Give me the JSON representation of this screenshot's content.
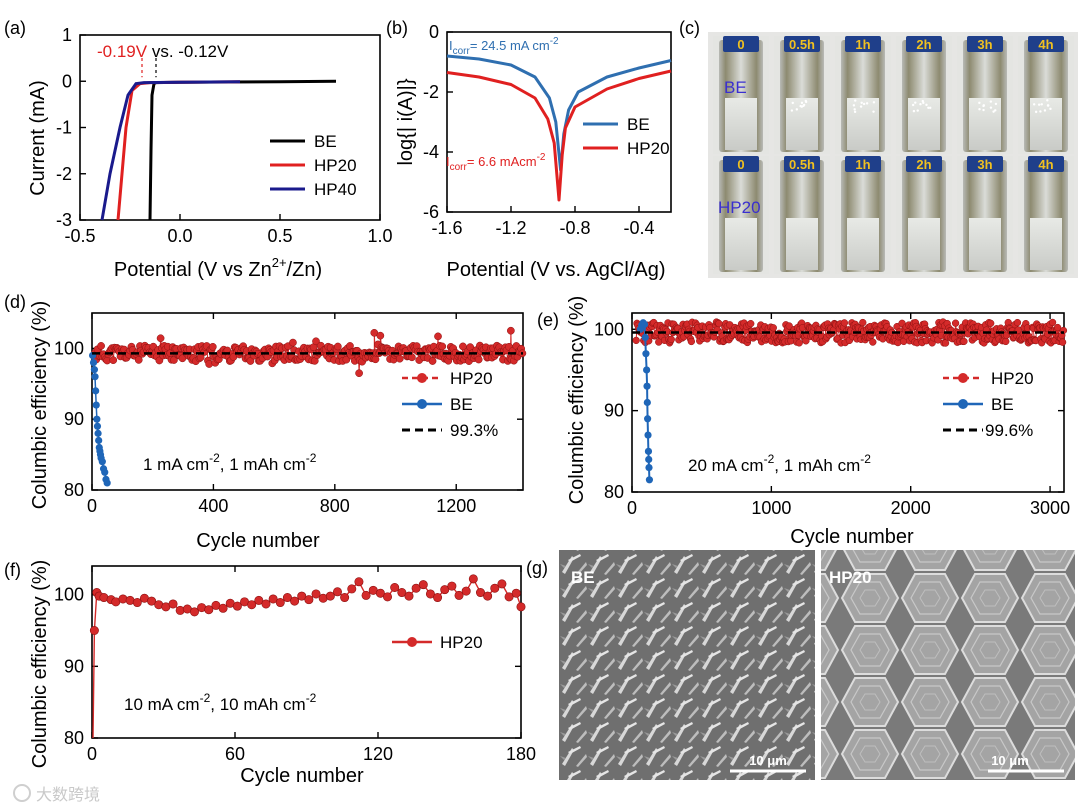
{
  "watermark": "大数跨境",
  "colors": {
    "black": "#000000",
    "red": "#e02020",
    "red_dot": "#d42a2a",
    "blue_dark": "#1a1a8c",
    "blue": "#2f6fb0",
    "blue_dot": "#1f66b8",
    "annot_red": "#e02020",
    "photo_label": "#f0c020",
    "be_label": "#3a2fd0"
  },
  "chart_data": [
    {
      "id": "a",
      "panel_label": "(a)",
      "type": "line",
      "xlabel": "Potential (V vs Zn",
      "xlabel_sup": "2+",
      "xlabel_tail": "/Zn)",
      "ylabel": "Current (mA)",
      "xlim": [
        -0.5,
        1.0
      ],
      "ylim": [
        -3,
        1
      ],
      "xticks": [
        -0.5,
        0.0,
        0.5,
        1.0
      ],
      "xtick_labels": [
        "-0.5",
        "0.0",
        "0.5",
        "1.0"
      ],
      "yticks": [
        1,
        0,
        -1,
        -2,
        -3
      ],
      "ytick_labels": [
        "1",
        "0",
        "-1",
        "-2",
        "-3"
      ],
      "annotation_red": "-0.19V",
      "annotation_black": " vs. -0.12V",
      "annotation_marks_x": [
        -0.19,
        -0.12
      ],
      "series": [
        {
          "name": "BE",
          "color": "#000000",
          "x": [
            -0.15,
            -0.145,
            -0.14,
            -0.13,
            -0.12,
            0.0,
            0.5,
            0.78
          ],
          "y": [
            -3.0,
            -1.5,
            -0.3,
            -0.05,
            -0.03,
            -0.02,
            -0.01,
            0.0
          ]
        },
        {
          "name": "HP20",
          "color": "#e02020",
          "x": [
            -0.31,
            -0.29,
            -0.27,
            -0.24,
            -0.2,
            -0.15,
            0.0,
            0.3
          ],
          "y": [
            -3.0,
            -2.0,
            -1.0,
            -0.2,
            -0.05,
            -0.03,
            -0.02,
            -0.01
          ]
        },
        {
          "name": "HP40",
          "color": "#1a1a8c",
          "x": [
            -0.39,
            -0.35,
            -0.3,
            -0.26,
            -0.22,
            -0.18,
            0.0,
            0.3
          ],
          "y": [
            -3.0,
            -2.0,
            -1.0,
            -0.3,
            -0.05,
            -0.03,
            -0.02,
            -0.01
          ]
        }
      ],
      "legend": [
        "BE",
        "HP20",
        "HP40"
      ]
    },
    {
      "id": "b",
      "panel_label": "(b)",
      "type": "line",
      "xlabel": "Potential (V vs. AgCl/Ag)",
      "ylabel": "log{| i(A)|}",
      "xlim": [
        -1.6,
        -0.2
      ],
      "ylim": [
        -6,
        0
      ],
      "xticks": [
        -1.6,
        -1.2,
        -0.8,
        -0.4
      ],
      "xtick_labels": [
        "-1.6",
        "-1.2",
        "-0.8",
        "-0.4"
      ],
      "yticks": [
        0,
        -2,
        -4,
        -6
      ],
      "ytick_labels": [
        "0",
        "-2",
        "-4",
        "-6"
      ],
      "icorr_be": "I",
      "icorr_be_sub": "corr",
      "icorr_be_value": "= 24.5 mA cm",
      "icorr_be_unit_sup": "-2",
      "icorr_hp": "I",
      "icorr_hp_sub": "corr",
      "icorr_hp_value": "= 6.6 mAcm",
      "icorr_hp_unit_sup": "-2",
      "series": [
        {
          "name": "BE",
          "color": "#2f6fb0",
          "x": [
            -1.6,
            -1.4,
            -1.2,
            -1.05,
            -0.96,
            -0.92,
            -0.89,
            -0.87,
            -0.84,
            -0.78,
            -0.6,
            -0.4,
            -0.2
          ],
          "y": [
            -0.8,
            -0.9,
            -1.1,
            -1.5,
            -2.2,
            -3.0,
            -4.6,
            -3.4,
            -2.6,
            -2.0,
            -1.5,
            -1.2,
            -0.95
          ]
        },
        {
          "name": "HP20",
          "color": "#e02020",
          "x": [
            -1.6,
            -1.4,
            -1.2,
            -1.05,
            -0.97,
            -0.93,
            -0.9,
            -0.88,
            -0.86,
            -0.8,
            -0.6,
            -0.4,
            -0.2
          ],
          "y": [
            -1.35,
            -1.5,
            -1.75,
            -2.2,
            -2.9,
            -3.7,
            -5.6,
            -4.1,
            -3.2,
            -2.5,
            -1.9,
            -1.55,
            -1.3
          ]
        }
      ],
      "legend": [
        "BE",
        "HP20"
      ]
    },
    {
      "id": "d",
      "panel_label": "(d)",
      "type": "scatter",
      "xlabel": "Cycle number",
      "ylabel": "Columbic efficiency (%)",
      "xlim": [
        0,
        1420
      ],
      "ylim": [
        80,
        105
      ],
      "xticks": [
        0,
        400,
        800,
        1200
      ],
      "xtick_labels": [
        "0",
        "400",
        "800",
        "1200"
      ],
      "yticks": [
        80,
        90,
        100
      ],
      "ytick_labels": [
        "80",
        "90",
        "100"
      ],
      "condition": "1 mA cm",
      "condition_sup1": "-2",
      "condition_mid": ", 1 mAh cm",
      "condition_sup2": "-2",
      "reference_line": 99.3,
      "legend": [
        "HP20",
        "BE",
        "99.3%"
      ],
      "series": [
        {
          "name": "HP20",
          "color": "#d42a2a",
          "x_range": [
            10,
            1420
          ],
          "mean": 99.3,
          "spread": [
            -3.0,
            3.0
          ],
          "outliers": [
            [
              880,
              96.5
            ],
            [
              930,
              102.2
            ],
            [
              950,
              101.8
            ],
            [
              1380,
              102.5
            ],
            [
              1140,
              101.7
            ]
          ]
        },
        {
          "name": "BE",
          "color": "#1f66b8",
          "x": [
            2,
            5,
            8,
            10,
            12,
            14,
            16,
            18,
            20,
            22,
            24,
            26,
            28,
            30,
            34,
            38,
            42,
            46,
            50
          ],
          "y": [
            99,
            98,
            97,
            96,
            94,
            92,
            90,
            89,
            88,
            87,
            86,
            85.5,
            85,
            84.5,
            84,
            83,
            82.5,
            81.5,
            81
          ]
        }
      ]
    },
    {
      "id": "e",
      "panel_label": "(e)",
      "type": "scatter",
      "xlabel": "Cycle number",
      "ylabel": "Columbic efficiency (%)",
      "xlim": [
        0,
        3100
      ],
      "ylim": [
        80,
        102
      ],
      "xticks": [
        0,
        1000,
        2000,
        3000
      ],
      "xtick_labels": [
        "0",
        "1000",
        "2000",
        "3000"
      ],
      "yticks": [
        80,
        90,
        100
      ],
      "ytick_labels": [
        "80",
        "90",
        "100"
      ],
      "condition": "20 mA cm",
      "condition_sup1": "-2",
      "condition_mid": ",  1 mAh cm",
      "condition_sup2": "-2",
      "reference_line": 99.6,
      "legend": [
        "HP20",
        "BE",
        "99.6%"
      ],
      "series": [
        {
          "name": "HP20",
          "color": "#d42a2a",
          "x_range": [
            30,
            3100
          ],
          "mean": 99.6,
          "spread": [
            -1.8,
            1.8
          ]
        },
        {
          "name": "BE",
          "color": "#1f66b8",
          "x": [
            60,
            70,
            80,
            90,
            95,
            100,
            105,
            108,
            110,
            112,
            115,
            118,
            120,
            122,
            125
          ],
          "y": [
            100,
            100.5,
            100.8,
            100.6,
            99,
            97,
            95,
            93,
            91,
            89,
            87,
            85,
            84,
            83,
            81.5
          ]
        }
      ]
    },
    {
      "id": "f",
      "panel_label": "(f)",
      "type": "scatter",
      "xlabel": "Cycle number",
      "ylabel": "Columbic efficiency (%)",
      "xlim": [
        0,
        180
      ],
      "ylim": [
        80,
        104
      ],
      "xticks": [
        0,
        60,
        120,
        180
      ],
      "xtick_labels": [
        "0",
        "60",
        "120",
        "180"
      ],
      "yticks": [
        80,
        90,
        100
      ],
      "ytick_labels": [
        "80",
        "90",
        "100"
      ],
      "condition": "10 mA cm",
      "condition_sup1": "-2",
      "condition_mid": ", 10 mAh cm",
      "condition_sup2": "-2",
      "legend": [
        "HP20"
      ],
      "series": [
        {
          "name": "HP20",
          "color": "#d42a2a",
          "x": [
            1,
            2,
            3,
            5,
            8,
            10,
            13,
            16,
            19,
            22,
            25,
            28,
            31,
            34,
            37,
            40,
            43,
            46,
            49,
            52,
            55,
            58,
            61,
            64,
            67,
            70,
            73,
            76,
            79,
            82,
            85,
            88,
            91,
            94,
            97,
            100,
            103,
            106,
            109,
            112,
            115,
            118,
            121,
            124,
            127,
            130,
            133,
            136,
            139,
            142,
            145,
            148,
            151,
            154,
            157,
            160,
            163,
            166,
            169,
            172,
            175,
            178,
            180
          ],
          "y": [
            95,
            100.3,
            99.8,
            99.6,
            99.3,
            99.0,
            99.4,
            99.2,
            98.9,
            99.5,
            99.1,
            98.6,
            98.3,
            98.7,
            97.8,
            98.0,
            97.6,
            98.2,
            97.9,
            98.5,
            98.1,
            98.8,
            98.4,
            99.0,
            98.6,
            99.2,
            98.7,
            99.4,
            98.9,
            99.6,
            99.1,
            99.8,
            99.3,
            100.1,
            99.5,
            99.8,
            100.4,
            99.6,
            100.8,
            101.8,
            99.9,
            100.6,
            100.2,
            99.7,
            101.0,
            100.3,
            99.8,
            100.9,
            101.4,
            100.1,
            99.6,
            100.7,
            101.2,
            99.9,
            100.5,
            102.2,
            100.3,
            99.8,
            100.9,
            101.5,
            99.7,
            100.2,
            98.3
          ]
        }
      ]
    }
  ],
  "panel_c": {
    "panel_label": "(c)",
    "row_labels": [
      "BE",
      "HP20"
    ],
    "time_labels": [
      "0",
      "0.5h",
      "1h",
      "2h",
      "3h",
      "4h"
    ]
  },
  "panel_g": {
    "panel_label": "(g)",
    "images": [
      {
        "label": "BE",
        "scale_bar": "10 μm"
      },
      {
        "label": "HP20",
        "scale_bar": "10 μm"
      }
    ]
  }
}
